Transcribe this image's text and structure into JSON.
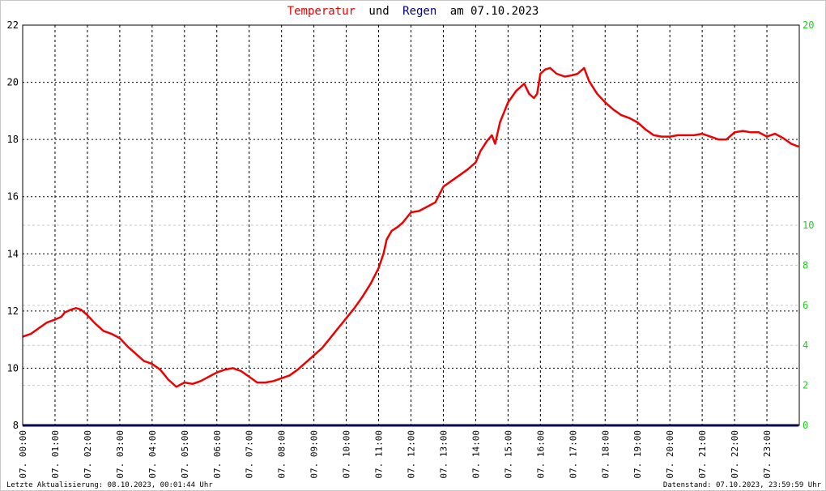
{
  "chart_data": {
    "type": "line",
    "title": {
      "part1": "Temperatur",
      "part2": "und",
      "part3": "Regen",
      "part4": "am 07.10.2023",
      "color1": "#ee0000",
      "color2": "#000000",
      "color3": "#00008b",
      "color4": "#000000"
    },
    "left_axis": {
      "min": 8,
      "max": 22,
      "ticks": [
        "8",
        "10",
        "12",
        "14",
        "16",
        "18",
        "20",
        "22"
      ]
    },
    "right_axis": {
      "color": "#22cc22",
      "labels": [
        {
          "text": "0",
          "value": 0
        },
        {
          "text": "2",
          "value": 2
        },
        {
          "text": "4",
          "value": 4
        },
        {
          "text": "6",
          "value": 6
        },
        {
          "text": "8",
          "value": 8
        },
        {
          "text": "10",
          "value": 10
        },
        {
          "text": "20",
          "value": 20
        }
      ],
      "dashed_grid_values": [
        2,
        4,
        6,
        8,
        10
      ]
    },
    "x_labels": [
      "07. 00:00",
      "07. 01:00",
      "07. 02:00",
      "07. 03:00",
      "07. 04:00",
      "07. 05:00",
      "07. 06:00",
      "07. 07:00",
      "07. 08:00",
      "07. 09:00",
      "07. 10:00",
      "07. 11:00",
      "07. 12:00",
      "07. 13:00",
      "07. 14:00",
      "07. 15:00",
      "07. 16:00",
      "07. 17:00",
      "07. 18:00",
      "07. 19:00",
      "07. 20:00",
      "07. 21:00",
      "07. 22:00",
      "07. 23:00"
    ],
    "grid": true,
    "series": [
      {
        "role": "temperature",
        "color": "#ee0000",
        "unit_hours": true,
        "points": [
          [
            0.0,
            11.1
          ],
          [
            0.25,
            11.2
          ],
          [
            0.5,
            11.4
          ],
          [
            0.75,
            11.6
          ],
          [
            1.0,
            11.7
          ],
          [
            1.2,
            11.8
          ],
          [
            1.3,
            11.95
          ],
          [
            1.5,
            12.05
          ],
          [
            1.65,
            12.1
          ],
          [
            1.8,
            12.05
          ],
          [
            2.0,
            11.85
          ],
          [
            2.25,
            11.55
          ],
          [
            2.5,
            11.3
          ],
          [
            2.75,
            11.2
          ],
          [
            3.0,
            11.05
          ],
          [
            3.25,
            10.75
          ],
          [
            3.5,
            10.5
          ],
          [
            3.75,
            10.25
          ],
          [
            4.0,
            10.15
          ],
          [
            4.25,
            9.95
          ],
          [
            4.5,
            9.6
          ],
          [
            4.75,
            9.35
          ],
          [
            5.0,
            9.5
          ],
          [
            5.25,
            9.45
          ],
          [
            5.5,
            9.55
          ],
          [
            5.75,
            9.7
          ],
          [
            6.0,
            9.85
          ],
          [
            6.25,
            9.95
          ],
          [
            6.5,
            10.0
          ],
          [
            6.75,
            9.9
          ],
          [
            7.0,
            9.7
          ],
          [
            7.25,
            9.5
          ],
          [
            7.5,
            9.5
          ],
          [
            7.75,
            9.55
          ],
          [
            8.0,
            9.65
          ],
          [
            8.25,
            9.75
          ],
          [
            8.5,
            9.95
          ],
          [
            8.75,
            10.2
          ],
          [
            9.0,
            10.45
          ],
          [
            9.25,
            10.7
          ],
          [
            9.5,
            11.05
          ],
          [
            9.75,
            11.4
          ],
          [
            10.0,
            11.75
          ],
          [
            10.25,
            12.1
          ],
          [
            10.5,
            12.5
          ],
          [
            10.75,
            12.95
          ],
          [
            11.0,
            13.5
          ],
          [
            11.15,
            14.0
          ],
          [
            11.25,
            14.5
          ],
          [
            11.4,
            14.8
          ],
          [
            11.6,
            14.95
          ],
          [
            11.75,
            15.1
          ],
          [
            12.0,
            15.45
          ],
          [
            12.25,
            15.5
          ],
          [
            12.5,
            15.65
          ],
          [
            12.75,
            15.8
          ],
          [
            13.0,
            16.35
          ],
          [
            13.25,
            16.55
          ],
          [
            13.5,
            16.75
          ],
          [
            13.75,
            16.95
          ],
          [
            14.0,
            17.2
          ],
          [
            14.15,
            17.6
          ],
          [
            14.35,
            17.95
          ],
          [
            14.5,
            18.15
          ],
          [
            14.6,
            17.85
          ],
          [
            14.75,
            18.6
          ],
          [
            15.0,
            19.3
          ],
          [
            15.25,
            19.7
          ],
          [
            15.5,
            19.95
          ],
          [
            15.65,
            19.6
          ],
          [
            15.8,
            19.45
          ],
          [
            15.9,
            19.6
          ],
          [
            16.0,
            20.3
          ],
          [
            16.15,
            20.45
          ],
          [
            16.3,
            20.5
          ],
          [
            16.5,
            20.3
          ],
          [
            16.75,
            20.2
          ],
          [
            17.0,
            20.25
          ],
          [
            17.15,
            20.3
          ],
          [
            17.35,
            20.5
          ],
          [
            17.5,
            20.05
          ],
          [
            17.75,
            19.6
          ],
          [
            18.0,
            19.3
          ],
          [
            18.25,
            19.05
          ],
          [
            18.5,
            18.85
          ],
          [
            18.75,
            18.75
          ],
          [
            19.0,
            18.6
          ],
          [
            19.25,
            18.35
          ],
          [
            19.5,
            18.15
          ],
          [
            19.75,
            18.1
          ],
          [
            20.0,
            18.1
          ],
          [
            20.25,
            18.15
          ],
          [
            20.5,
            18.15
          ],
          [
            20.75,
            18.15
          ],
          [
            21.0,
            18.2
          ],
          [
            21.25,
            18.1
          ],
          [
            21.5,
            18.0
          ],
          [
            21.75,
            18.0
          ],
          [
            22.0,
            18.25
          ],
          [
            22.25,
            18.3
          ],
          [
            22.5,
            18.25
          ],
          [
            22.75,
            18.25
          ],
          [
            23.0,
            18.1
          ],
          [
            23.25,
            18.2
          ],
          [
            23.5,
            18.05
          ],
          [
            23.75,
            17.85
          ],
          [
            23.98,
            17.75
          ]
        ]
      },
      {
        "role": "rain",
        "color": "#00008b",
        "points": [
          [
            0,
            0
          ],
          [
            23.98,
            0
          ]
        ]
      }
    ]
  },
  "footer": {
    "left": "Letzte Aktualisierung: 08.10.2023, 00:01:44 Uhr",
    "right": "Datenstand: 07.10.2023, 23:59:59 Uhr"
  }
}
